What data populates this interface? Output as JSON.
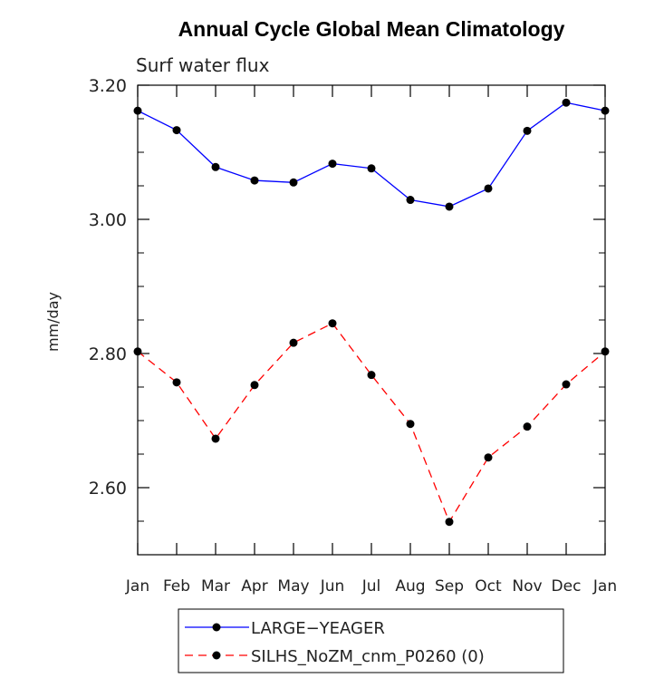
{
  "chart_data": {
    "type": "line",
    "title": "Annual Cycle Global Mean Climatology",
    "subtitle": "Surf water flux",
    "ylabel": "mm/day",
    "xlabel": "",
    "categories": [
      "Jan",
      "Feb",
      "Mar",
      "Apr",
      "May",
      "Jun",
      "Jul",
      "Aug",
      "Sep",
      "Oct",
      "Nov",
      "Dec",
      "Jan"
    ],
    "ylim": [
      2.5,
      3.2
    ],
    "yticks": [
      2.6,
      2.8,
      3.0,
      3.2
    ],
    "ytick_labels": [
      "2.60",
      "2.80",
      "3.00",
      "3.20"
    ],
    "series": [
      {
        "name": "LARGE−YEAGER",
        "color": "#0000ff",
        "line_style": "solid",
        "values": [
          3.162,
          3.133,
          3.078,
          3.058,
          3.055,
          3.083,
          3.076,
          3.029,
          3.019,
          3.046,
          3.132,
          3.174,
          3.162
        ]
      },
      {
        "name": "SILHS_NoZM_cnm_P0260 (0)",
        "color": "#ff0000",
        "line_style": "dashed",
        "values": [
          2.803,
          2.757,
          2.673,
          2.753,
          2.816,
          2.845,
          2.768,
          2.695,
          2.549,
          2.645,
          2.691,
          2.754,
          2.803
        ]
      }
    ],
    "grid": false,
    "legend_position": "bottom"
  }
}
